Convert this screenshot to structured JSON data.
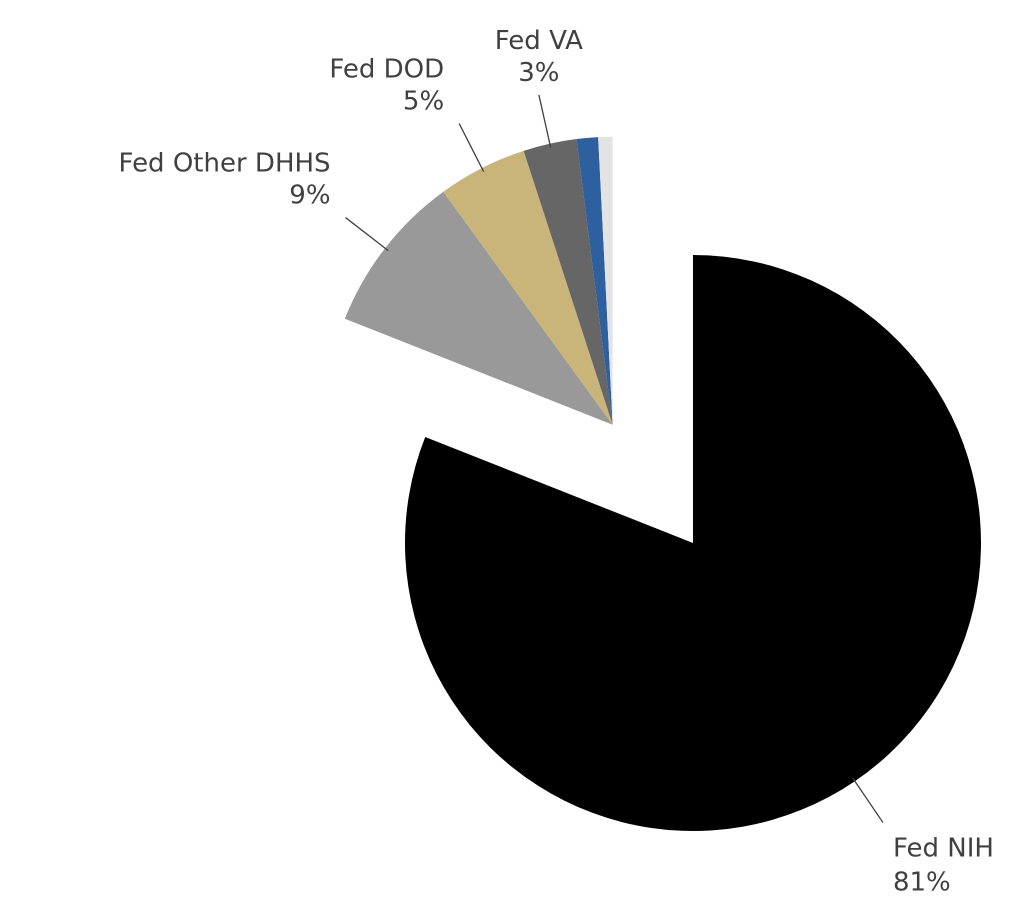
{
  "chart_data": {
    "type": "pie",
    "categories": [
      "Fed NIH",
      "Fed Other DHHS",
      "Fed DOD",
      "Fed VA",
      null,
      null
    ],
    "values": [
      81,
      9,
      5,
      3,
      1.2,
      0.8
    ],
    "value_labels": [
      "81%",
      "9%",
      "5%",
      "3%",
      null,
      null
    ],
    "colors": [
      "#000000",
      "#999999",
      "#c9b47a",
      "#666666",
      "#2e5f9e",
      "#e3e3e3"
    ],
    "exploded": [
      false,
      true,
      true,
      true,
      true,
      true
    ]
  }
}
